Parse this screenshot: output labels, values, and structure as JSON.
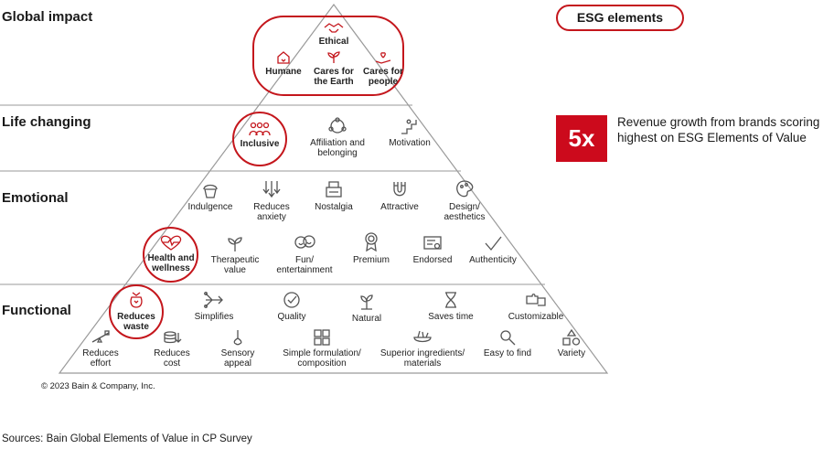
{
  "tiers": {
    "global": "Global impact",
    "life": "Life changing",
    "emotional": "Emotional",
    "functional": "Functional"
  },
  "legend": "ESG elements",
  "stat": {
    "value": "5x",
    "text": "Revenue growth from brands scoring highest on ESG Elements of Value"
  },
  "elements": {
    "ethical": "Ethical",
    "humane": "Humane",
    "cares_earth": "Cares for the Earth",
    "cares_people": "Cares for people",
    "inclusive": "Inclusive",
    "affiliation": "Affiliation and belonging",
    "motivation": "Motivation",
    "indulgence": "Indulgence",
    "reduces_anxiety": "Reduces anxiety",
    "nostalgia": "Nostalgia",
    "attractive": "Attractive",
    "design": "Design/ aesthetics",
    "health": "Health and wellness",
    "therapeutic": "Therapeutic value",
    "fun": "Fun/ entertainment",
    "premium": "Premium",
    "endorsed": "Endorsed",
    "authenticity": "Authenticity",
    "reduces_waste": "Reduces waste",
    "simplifies": "Simplifies",
    "quality": "Quality",
    "natural": "Natural",
    "saves_time": "Saves time",
    "customizable": "Customizable",
    "reduces_effort": "Reduces effort",
    "reduces_cost": "Reduces cost",
    "sensory": "Sensory appeal",
    "simple_formulation": "Simple formulation/ composition",
    "superior": "Superior ingredients/ materials",
    "easy_find": "Easy to find",
    "variety": "Variety"
  },
  "copyright": "© 2023 Bain & Company, Inc.",
  "source": "Sources: Bain Global Elements of Value in CP Survey",
  "colors": {
    "accent": "#c4161c",
    "stat_bg": "#cc0a1c",
    "line": "#9a9a9a"
  }
}
